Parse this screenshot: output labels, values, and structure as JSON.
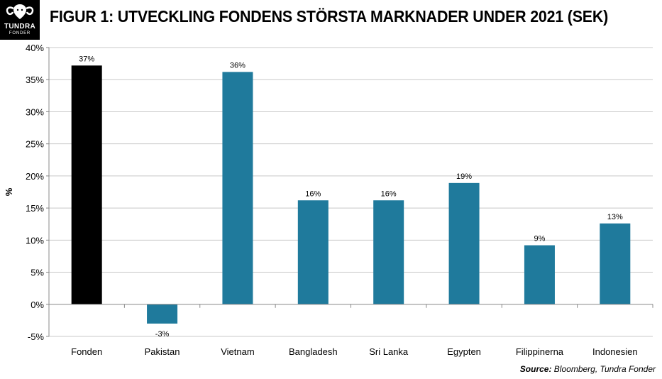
{
  "header": {
    "logo_name": "TUNDRA",
    "logo_sub": "FONDER",
    "title": "FIGUR 1: UTVECKLING FONDENS STÖRSTA MARKNADER UNDER 2021 (SEK)"
  },
  "footer": {
    "source_label": "Source:",
    "source_text": " Bloomberg, Tundra Fonder"
  },
  "colors": {
    "fund": "#000000",
    "market": "#1f7a9c",
    "grid": "#c8c8c8"
  },
  "chart_data": {
    "type": "bar",
    "title": "FIGUR 1: UTVECKLING FONDENS STÖRSTA MARKNADER UNDER 2021 (SEK)",
    "xlabel": "",
    "ylabel": "%",
    "ylim": [
      -5,
      40
    ],
    "yticks": [
      -5,
      0,
      5,
      10,
      15,
      20,
      25,
      30,
      35,
      40
    ],
    "ytick_labels": [
      "-5%",
      "0%",
      "5%",
      "10%",
      "15%",
      "20%",
      "25%",
      "30%",
      "35%",
      "40%"
    ],
    "grid": true,
    "legend": "none",
    "categories": [
      "Fonden",
      "Pakistan",
      "Vietnam",
      "Bangladesh",
      "Sri Lanka",
      "Egypten",
      "Filippinerna",
      "Indonesien"
    ],
    "values": [
      37.2,
      -3.0,
      36.2,
      16.2,
      16.2,
      18.9,
      9.2,
      12.6
    ],
    "data_labels": [
      "37%",
      "-3%",
      "36%",
      "16%",
      "16%",
      "19%",
      "9%",
      "13%"
    ],
    "bar_colors": [
      "#000000",
      "#1f7a9c",
      "#1f7a9c",
      "#1f7a9c",
      "#1f7a9c",
      "#1f7a9c",
      "#1f7a9c",
      "#1f7a9c"
    ]
  }
}
